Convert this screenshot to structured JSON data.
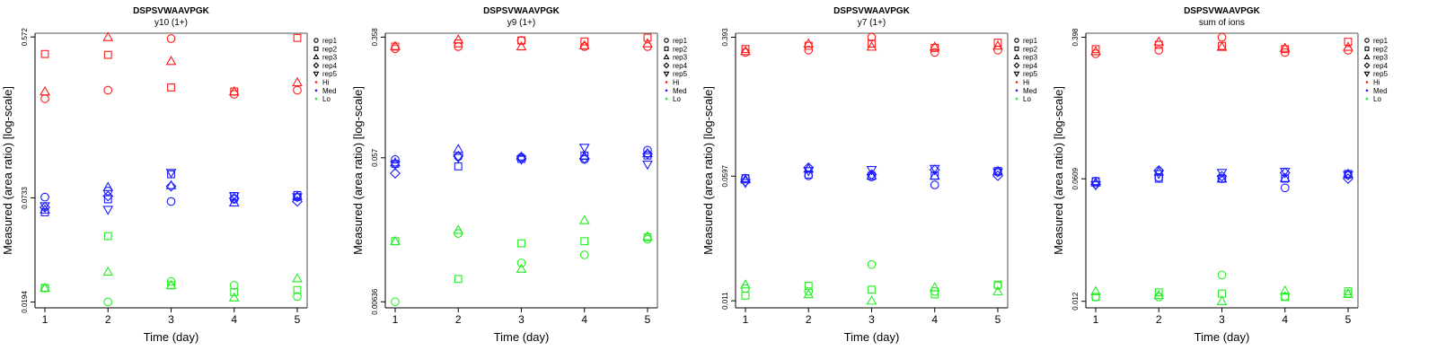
{
  "colors": {
    "Hi": "#ff1a1a",
    "Med": "#1a1aff",
    "Lo": "#22ee22"
  },
  "legend": {
    "shapes": [
      {
        "label": "rep1",
        "shape": "circle"
      },
      {
        "label": "rep2",
        "shape": "square"
      },
      {
        "label": "rep3",
        "shape": "triangle-up"
      },
      {
        "label": "rep4",
        "shape": "diamond"
      },
      {
        "label": "rep5",
        "shape": "triangle-down"
      }
    ],
    "groups": [
      {
        "label": "Hi",
        "color": "#ff1a1a"
      },
      {
        "label": "Med",
        "color": "#1a1aff"
      },
      {
        "label": "Lo",
        "color": "#22ee22"
      }
    ]
  },
  "chart_data": [
    {
      "type": "scatter",
      "title": "DSPSVWAAVPGK",
      "subtitle": "y10 (1+)",
      "xlabel": "Time (day)",
      "ylabel": "Measured (area ratio) [log-scale]",
      "yscale": "log",
      "x": [
        1,
        2,
        3,
        4,
        5
      ],
      "xticks": [
        "1",
        "2",
        "3",
        "4",
        "5"
      ],
      "yticks": [
        {
          "value": 0.0194,
          "label": "0.0194"
        },
        {
          "value": 0.0733,
          "label": "0.0733"
        },
        {
          "value": 0.572,
          "label": "0.572"
        }
      ],
      "ylim": [
        0.018,
        0.6
      ],
      "series": [
        {
          "group": "Hi",
          "rep": "rep1",
          "values": [
            0.26,
            0.29,
            0.56,
            0.275,
            0.29
          ]
        },
        {
          "group": "Hi",
          "rep": "rep2",
          "values": [
            0.46,
            0.455,
            0.3,
            0.285,
            0.565
          ]
        },
        {
          "group": "Hi",
          "rep": "rep3",
          "values": [
            0.285,
            0.57,
            0.42,
            0.285,
            0.32
          ]
        },
        {
          "group": "Hi",
          "rep": "rep4",
          "values": [
            null,
            null,
            null,
            null,
            null
          ]
        },
        {
          "group": "Hi",
          "rep": "rep5",
          "values": [
            null,
            null,
            null,
            null,
            null
          ]
        },
        {
          "group": "Med",
          "rep": "rep1",
          "values": [
            0.074,
            0.08,
            0.07,
            0.072,
            0.074
          ]
        },
        {
          "group": "Med",
          "rep": "rep2",
          "values": [
            0.061,
            0.072,
            0.099,
            0.075,
            0.076
          ]
        },
        {
          "group": "Med",
          "rep": "rep3",
          "values": [
            0.063,
            0.084,
            0.086,
            0.069,
            0.075
          ]
        },
        {
          "group": "Med",
          "rep": "rep4",
          "values": [
            0.065,
            0.075,
            0.085,
            0.073,
            0.07
          ]
        },
        {
          "group": "Med",
          "rep": "rep5",
          "values": [
            0.066,
            0.063,
            0.101,
            0.075,
            0.074
          ]
        },
        {
          "group": "Lo",
          "rep": "rep1",
          "values": [
            0.0232,
            0.0194,
            0.0252,
            0.024,
            0.0208
          ]
        },
        {
          "group": "Lo",
          "rep": "rep2",
          "values": [
            0.0232,
            0.045,
            0.024,
            0.022,
            0.0226
          ]
        },
        {
          "group": "Lo",
          "rep": "rep3",
          "values": [
            0.0232,
            0.0285,
            0.024,
            0.0205,
            0.0262
          ]
        },
        {
          "group": "Lo",
          "rep": "rep4",
          "values": [
            null,
            null,
            null,
            null,
            null
          ]
        },
        {
          "group": "Lo",
          "rep": "rep5",
          "values": [
            null,
            null,
            null,
            null,
            null
          ]
        }
      ]
    },
    {
      "type": "scatter",
      "title": "DSPSVWAAVPGK",
      "subtitle": "y9 (1+)",
      "xlabel": "Time (day)",
      "ylabel": "Measured (area ratio) [log-scale]",
      "yscale": "log",
      "x": [
        1,
        2,
        3,
        4,
        5
      ],
      "xticks": [
        "1",
        "2",
        "3",
        "4",
        "5"
      ],
      "yticks": [
        {
          "value": 0.00636,
          "label": "0.00636"
        },
        {
          "value": 0.057,
          "label": "0.057"
        },
        {
          "value": 0.358,
          "label": "0.358"
        }
      ],
      "ylim": [
        0.0058,
        0.38
      ],
      "series": [
        {
          "group": "Hi",
          "rep": "rep1",
          "values": [
            0.3,
            0.31,
            0.34,
            0.31,
            0.31
          ]
        },
        {
          "group": "Hi",
          "rep": "rep2",
          "values": [
            0.31,
            0.325,
            0.34,
            0.335,
            0.355
          ]
        },
        {
          "group": "Hi",
          "rep": "rep3",
          "values": [
            0.312,
            0.345,
            0.31,
            0.315,
            0.325
          ]
        },
        {
          "group": "Hi",
          "rep": "rep4",
          "values": [
            null,
            null,
            null,
            null,
            null
          ]
        },
        {
          "group": "Hi",
          "rep": "rep5",
          "values": [
            null,
            null,
            null,
            null,
            null
          ]
        },
        {
          "group": "Med",
          "rep": "rep1",
          "values": [
            0.0555,
            0.058,
            0.0575,
            0.0555,
            0.064
          ]
        },
        {
          "group": "Med",
          "rep": "rep2",
          "values": [
            0.052,
            0.05,
            0.056,
            0.059,
            0.059
          ]
        },
        {
          "group": "Med",
          "rep": "rep3",
          "values": [
            0.053,
            0.065,
            0.058,
            0.0585,
            0.061
          ]
        },
        {
          "group": "Med",
          "rep": "rep4",
          "values": [
            0.045,
            0.0585,
            0.0565,
            0.0565,
            0.0605
          ]
        },
        {
          "group": "Med",
          "rep": "rep5",
          "values": [
            0.051,
            0.057,
            0.0555,
            0.0665,
            0.0515
          ]
        },
        {
          "group": "Lo",
          "rep": "rep1",
          "values": [
            0.00636,
            0.018,
            0.0115,
            0.013,
            0.0165
          ]
        },
        {
          "group": "Lo",
          "rep": "rep2",
          "values": [
            0.016,
            0.009,
            0.0155,
            0.016,
            0.017
          ]
        },
        {
          "group": "Lo",
          "rep": "rep3",
          "values": [
            0.016,
            0.019,
            0.0105,
            0.022,
            0.0172
          ]
        },
        {
          "group": "Lo",
          "rep": "rep4",
          "values": [
            null,
            null,
            null,
            null,
            null
          ]
        },
        {
          "group": "Lo",
          "rep": "rep5",
          "values": [
            null,
            null,
            null,
            null,
            null
          ]
        }
      ]
    },
    {
      "type": "scatter",
      "title": "DSPSVWAAVPGK",
      "subtitle": "y7 (1+)",
      "xlabel": "Time (day)",
      "ylabel": "Measured (area ratio) [log-scale]",
      "yscale": "log",
      "x": [
        1,
        2,
        3,
        4,
        5
      ],
      "xticks": [
        "1",
        "2",
        "3",
        "4",
        "5"
      ],
      "yticks": [
        {
          "value": 0.011,
          "label": "0.011"
        },
        {
          "value": 0.0597,
          "label": "0.0597"
        },
        {
          "value": 0.393,
          "label": "0.393"
        }
      ],
      "ylim": [
        0.01,
        0.415
      ],
      "series": [
        {
          "group": "Hi",
          "rep": "rep1",
          "values": [
            0.32,
            0.33,
            0.393,
            0.32,
            0.33
          ]
        },
        {
          "group": "Hi",
          "rep": "rep2",
          "values": [
            0.335,
            0.35,
            0.36,
            0.34,
            0.365
          ]
        },
        {
          "group": "Hi",
          "rep": "rep3",
          "values": [
            0.325,
            0.36,
            0.345,
            0.345,
            0.35
          ]
        },
        {
          "group": "Hi",
          "rep": "rep4",
          "values": [
            null,
            null,
            null,
            null,
            null
          ]
        },
        {
          "group": "Hi",
          "rep": "rep5",
          "values": [
            null,
            null,
            null,
            null,
            null
          ]
        },
        {
          "group": "Med",
          "rep": "rep1",
          "values": [
            0.058,
            0.06,
            0.059,
            0.053,
            0.063
          ]
        },
        {
          "group": "Med",
          "rep": "rep2",
          "values": [
            0.058,
            0.061,
            0.06,
            0.06,
            0.064
          ]
        },
        {
          "group": "Med",
          "rep": "rep3",
          "values": [
            0.057,
            0.066,
            0.06,
            0.06,
            0.064
          ]
        },
        {
          "group": "Med",
          "rep": "rep4",
          "values": [
            0.0555,
            0.067,
            0.061,
            0.065,
            0.06
          ]
        },
        {
          "group": "Med",
          "rep": "rep5",
          "values": [
            0.0545,
            0.064,
            0.065,
            0.066,
            0.063
          ]
        },
        {
          "group": "Lo",
          "rep": "rep1",
          "values": [
            0.013,
            0.0125,
            0.018,
            0.0125,
            0.0135
          ]
        },
        {
          "group": "Lo",
          "rep": "rep2",
          "values": [
            0.0118,
            0.0135,
            0.0128,
            0.012,
            0.0137
          ]
        },
        {
          "group": "Lo",
          "rep": "rep3",
          "values": [
            0.0137,
            0.012,
            0.011,
            0.0132,
            0.0125
          ]
        },
        {
          "group": "Lo",
          "rep": "rep4",
          "values": [
            null,
            null,
            null,
            null,
            null
          ]
        },
        {
          "group": "Lo",
          "rep": "rep5",
          "values": [
            null,
            null,
            null,
            null,
            null
          ]
        }
      ]
    },
    {
      "type": "scatter",
      "title": "DSPSVWAAVPGK",
      "subtitle": "sum of ions",
      "xlabel": "Time (day)",
      "ylabel": "Measured (area ratio) [log-scale]",
      "yscale": "log",
      "x": [
        1,
        2,
        3,
        4,
        5
      ],
      "xticks": [
        "1",
        "2",
        "3",
        "4",
        "5"
      ],
      "yticks": [
        {
          "value": 0.012,
          "label": "0.012"
        },
        {
          "value": 0.0609,
          "label": "0.0609"
        },
        {
          "value": 0.398,
          "label": "0.398"
        }
      ],
      "ylim": [
        0.011,
        0.42
      ],
      "series": [
        {
          "group": "Hi",
          "rep": "rep1",
          "values": [
            0.32,
            0.335,
            0.398,
            0.325,
            0.335
          ]
        },
        {
          "group": "Hi",
          "rep": "rep2",
          "values": [
            0.34,
            0.36,
            0.355,
            0.34,
            0.375
          ]
        },
        {
          "group": "Hi",
          "rep": "rep3",
          "values": [
            0.33,
            0.375,
            0.35,
            0.345,
            0.35
          ]
        },
        {
          "group": "Hi",
          "rep": "rep4",
          "values": [
            null,
            null,
            null,
            null,
            null
          ]
        },
        {
          "group": "Hi",
          "rep": "rep5",
          "values": [
            null,
            null,
            null,
            null,
            null
          ]
        },
        {
          "group": "Med",
          "rep": "rep1",
          "values": [
            0.059,
            0.062,
            0.061,
            0.054,
            0.064
          ]
        },
        {
          "group": "Med",
          "rep": "rep2",
          "values": [
            0.059,
            0.061,
            0.061,
            0.061,
            0.065
          ]
        },
        {
          "group": "Med",
          "rep": "rep3",
          "values": [
            0.058,
            0.067,
            0.061,
            0.0615,
            0.065
          ]
        },
        {
          "group": "Med",
          "rep": "rep4",
          "values": [
            0.0565,
            0.068,
            0.063,
            0.066,
            0.061
          ]
        },
        {
          "group": "Med",
          "rep": "rep5",
          "values": [
            0.056,
            0.065,
            0.066,
            0.067,
            0.064
          ]
        },
        {
          "group": "Lo",
          "rep": "rep1",
          "values": [
            0.0127,
            0.0127,
            0.017,
            0.0128,
            0.0133
          ]
        },
        {
          "group": "Lo",
          "rep": "rep2",
          "values": [
            0.0127,
            0.0135,
            0.0133,
            0.0127,
            0.0137
          ]
        },
        {
          "group": "Lo",
          "rep": "rep3",
          "values": [
            0.0137,
            0.013,
            0.012,
            0.0138,
            0.0132
          ]
        },
        {
          "group": "Lo",
          "rep": "rep4",
          "values": [
            null,
            null,
            null,
            null,
            null
          ]
        },
        {
          "group": "Lo",
          "rep": "rep5",
          "values": [
            null,
            null,
            null,
            null,
            null
          ]
        }
      ]
    }
  ]
}
